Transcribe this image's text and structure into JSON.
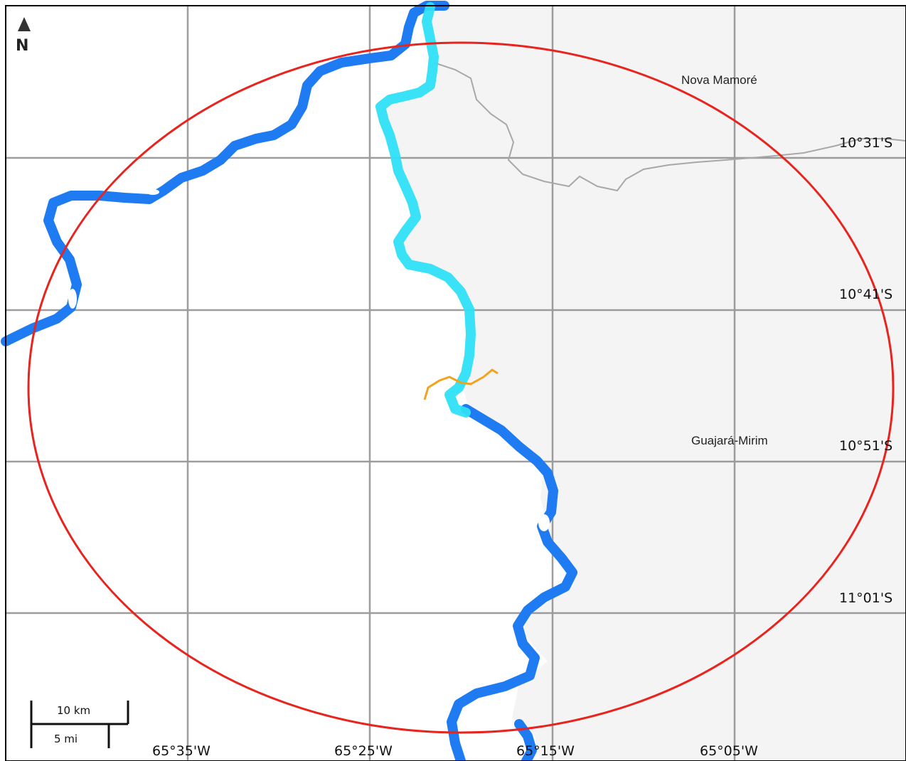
{
  "map": {
    "places": [
      {
        "id": "nova-mamore",
        "label": "Nova Mamoré"
      },
      {
        "id": "guajara-mirim",
        "label": "Guajará-Mirim"
      }
    ],
    "latitude_labels": [
      "10°31'S",
      "10°41'S",
      "10°51'S",
      "11°01'S"
    ],
    "longitude_labels": [
      "65°35'W",
      "65°25'W",
      "65°15'W",
      "65°05'W"
    ],
    "north_arrow": {
      "label": "N",
      "icon": "north-arrow-icon"
    },
    "scale_bar": {
      "km_label": "10 km",
      "mi_label": "5 mi"
    },
    "colors": {
      "river": "#1f7bf2",
      "river_highlight": "#2ee0f5",
      "buffer_circle": "#e8241f",
      "land_shade": "#f4f4f4",
      "border": "#a8a8a8",
      "road": "#f3a21c",
      "grid": "#8c8c8c"
    }
  }
}
